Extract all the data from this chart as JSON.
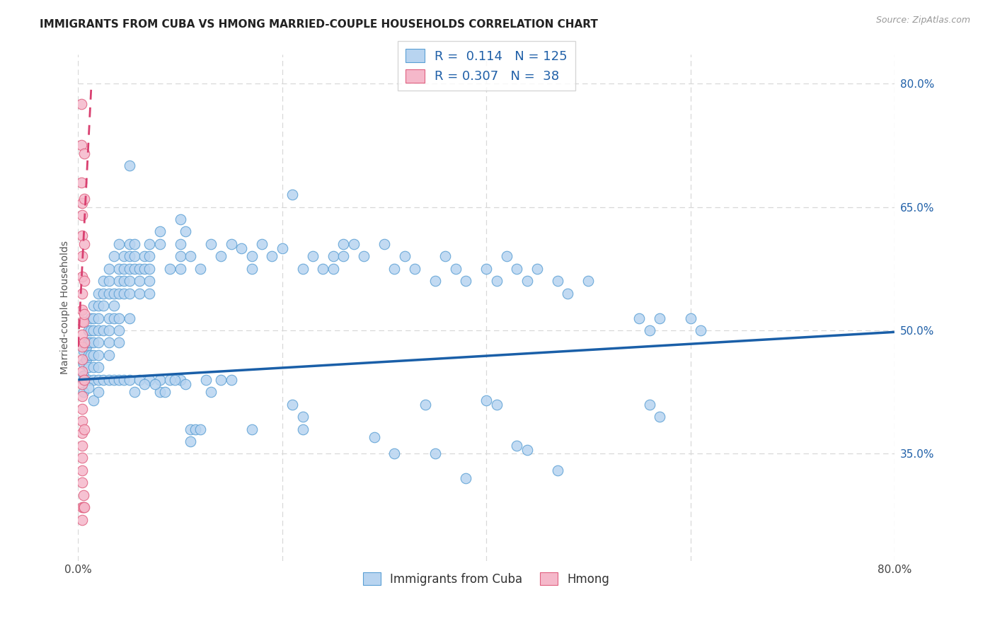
{
  "title": "IMMIGRANTS FROM CUBA VS HMONG MARRIED-COUPLE HOUSEHOLDS CORRELATION CHART",
  "source": "Source: ZipAtlas.com",
  "ylabel": "Married-couple Households",
  "xlim": [
    0.0,
    0.8
  ],
  "ylim": [
    0.22,
    0.835
  ],
  "xticks": [
    0.0,
    0.8
  ],
  "xtick_labels": [
    "0.0%",
    "80.0%"
  ],
  "ytick_labels_right": [
    "80.0%",
    "65.0%",
    "50.0%",
    "35.0%"
  ],
  "yticks_right": [
    0.8,
    0.65,
    0.5,
    0.35
  ],
  "legend_blue_r": "0.114",
  "legend_blue_n": "125",
  "legend_pink_r": "0.307",
  "legend_pink_n": "38",
  "blue_color": "#b8d4f0",
  "pink_color": "#f5b8ca",
  "blue_edge_color": "#5a9fd4",
  "pink_edge_color": "#e06080",
  "blue_line_color": "#1a5fa8",
  "pink_line_color": "#d94070",
  "blue_scatter": [
    [
      0.005,
      0.475
    ],
    [
      0.005,
      0.46
    ],
    [
      0.005,
      0.445
    ],
    [
      0.008,
      0.48
    ],
    [
      0.008,
      0.465
    ],
    [
      0.01,
      0.5
    ],
    [
      0.01,
      0.485
    ],
    [
      0.01,
      0.47
    ],
    [
      0.01,
      0.455
    ],
    [
      0.01,
      0.44
    ],
    [
      0.012,
      0.515
    ],
    [
      0.012,
      0.5
    ],
    [
      0.012,
      0.485
    ],
    [
      0.012,
      0.47
    ],
    [
      0.015,
      0.53
    ],
    [
      0.015,
      0.515
    ],
    [
      0.015,
      0.5
    ],
    [
      0.015,
      0.485
    ],
    [
      0.015,
      0.47
    ],
    [
      0.015,
      0.455
    ],
    [
      0.015,
      0.44
    ],
    [
      0.02,
      0.545
    ],
    [
      0.02,
      0.53
    ],
    [
      0.02,
      0.515
    ],
    [
      0.02,
      0.5
    ],
    [
      0.02,
      0.485
    ],
    [
      0.02,
      0.47
    ],
    [
      0.02,
      0.455
    ],
    [
      0.02,
      0.44
    ],
    [
      0.025,
      0.56
    ],
    [
      0.025,
      0.545
    ],
    [
      0.025,
      0.53
    ],
    [
      0.025,
      0.5
    ],
    [
      0.03,
      0.575
    ],
    [
      0.03,
      0.56
    ],
    [
      0.03,
      0.545
    ],
    [
      0.03,
      0.515
    ],
    [
      0.03,
      0.5
    ],
    [
      0.03,
      0.485
    ],
    [
      0.03,
      0.47
    ],
    [
      0.035,
      0.59
    ],
    [
      0.035,
      0.545
    ],
    [
      0.035,
      0.53
    ],
    [
      0.035,
      0.515
    ],
    [
      0.04,
      0.605
    ],
    [
      0.04,
      0.575
    ],
    [
      0.04,
      0.56
    ],
    [
      0.04,
      0.545
    ],
    [
      0.04,
      0.515
    ],
    [
      0.04,
      0.5
    ],
    [
      0.04,
      0.485
    ],
    [
      0.045,
      0.59
    ],
    [
      0.045,
      0.575
    ],
    [
      0.045,
      0.56
    ],
    [
      0.045,
      0.545
    ],
    [
      0.05,
      0.7
    ],
    [
      0.05,
      0.605
    ],
    [
      0.05,
      0.59
    ],
    [
      0.05,
      0.575
    ],
    [
      0.05,
      0.56
    ],
    [
      0.05,
      0.545
    ],
    [
      0.05,
      0.515
    ],
    [
      0.055,
      0.605
    ],
    [
      0.055,
      0.59
    ],
    [
      0.055,
      0.575
    ],
    [
      0.06,
      0.575
    ],
    [
      0.06,
      0.56
    ],
    [
      0.06,
      0.545
    ],
    [
      0.065,
      0.59
    ],
    [
      0.065,
      0.575
    ],
    [
      0.07,
      0.605
    ],
    [
      0.07,
      0.59
    ],
    [
      0.07,
      0.575
    ],
    [
      0.07,
      0.56
    ],
    [
      0.07,
      0.545
    ],
    [
      0.08,
      0.62
    ],
    [
      0.08,
      0.605
    ],
    [
      0.09,
      0.575
    ],
    [
      0.1,
      0.635
    ],
    [
      0.1,
      0.605
    ],
    [
      0.1,
      0.59
    ],
    [
      0.1,
      0.575
    ],
    [
      0.105,
      0.62
    ],
    [
      0.11,
      0.59
    ],
    [
      0.12,
      0.575
    ],
    [
      0.13,
      0.605
    ],
    [
      0.14,
      0.59
    ],
    [
      0.15,
      0.605
    ],
    [
      0.16,
      0.6
    ],
    [
      0.17,
      0.59
    ],
    [
      0.17,
      0.575
    ],
    [
      0.18,
      0.605
    ],
    [
      0.19,
      0.59
    ],
    [
      0.2,
      0.6
    ],
    [
      0.21,
      0.665
    ],
    [
      0.22,
      0.575
    ],
    [
      0.23,
      0.59
    ],
    [
      0.24,
      0.575
    ],
    [
      0.25,
      0.59
    ],
    [
      0.25,
      0.575
    ],
    [
      0.26,
      0.605
    ],
    [
      0.26,
      0.59
    ],
    [
      0.27,
      0.605
    ],
    [
      0.28,
      0.59
    ],
    [
      0.3,
      0.605
    ],
    [
      0.31,
      0.575
    ],
    [
      0.32,
      0.59
    ],
    [
      0.33,
      0.575
    ],
    [
      0.35,
      0.56
    ],
    [
      0.36,
      0.59
    ],
    [
      0.37,
      0.575
    ],
    [
      0.38,
      0.56
    ],
    [
      0.4,
      0.575
    ],
    [
      0.41,
      0.56
    ],
    [
      0.42,
      0.59
    ],
    [
      0.43,
      0.575
    ],
    [
      0.44,
      0.56
    ],
    [
      0.45,
      0.575
    ],
    [
      0.47,
      0.56
    ],
    [
      0.48,
      0.545
    ],
    [
      0.5,
      0.56
    ],
    [
      0.55,
      0.515
    ],
    [
      0.56,
      0.5
    ],
    [
      0.57,
      0.515
    ],
    [
      0.6,
      0.515
    ],
    [
      0.61,
      0.5
    ],
    [
      0.005,
      0.44
    ],
    [
      0.005,
      0.425
    ],
    [
      0.01,
      0.43
    ],
    [
      0.015,
      0.415
    ],
    [
      0.02,
      0.425
    ],
    [
      0.025,
      0.44
    ],
    [
      0.03,
      0.44
    ],
    [
      0.035,
      0.44
    ],
    [
      0.04,
      0.44
    ],
    [
      0.045,
      0.44
    ],
    [
      0.05,
      0.44
    ],
    [
      0.06,
      0.44
    ],
    [
      0.07,
      0.44
    ],
    [
      0.08,
      0.44
    ],
    [
      0.08,
      0.425
    ],
    [
      0.09,
      0.44
    ],
    [
      0.1,
      0.44
    ],
    [
      0.11,
      0.38
    ],
    [
      0.11,
      0.365
    ],
    [
      0.115,
      0.38
    ],
    [
      0.12,
      0.38
    ],
    [
      0.125,
      0.44
    ],
    [
      0.13,
      0.425
    ],
    [
      0.14,
      0.44
    ],
    [
      0.15,
      0.44
    ],
    [
      0.17,
      0.38
    ],
    [
      0.22,
      0.395
    ],
    [
      0.22,
      0.38
    ],
    [
      0.34,
      0.41
    ],
    [
      0.35,
      0.35
    ],
    [
      0.38,
      0.32
    ],
    [
      0.4,
      0.415
    ],
    [
      0.41,
      0.41
    ],
    [
      0.56,
      0.41
    ],
    [
      0.57,
      0.395
    ],
    [
      0.055,
      0.425
    ],
    [
      0.065,
      0.435
    ],
    [
      0.075,
      0.435
    ],
    [
      0.085,
      0.425
    ],
    [
      0.095,
      0.44
    ],
    [
      0.105,
      0.435
    ],
    [
      0.21,
      0.41
    ],
    [
      0.29,
      0.37
    ],
    [
      0.31,
      0.35
    ],
    [
      0.43,
      0.36
    ],
    [
      0.44,
      0.355
    ],
    [
      0.47,
      0.33
    ]
  ],
  "pink_scatter": [
    [
      0.003,
      0.775
    ],
    [
      0.003,
      0.725
    ],
    [
      0.003,
      0.68
    ],
    [
      0.004,
      0.655
    ],
    [
      0.004,
      0.64
    ],
    [
      0.004,
      0.615
    ],
    [
      0.004,
      0.59
    ],
    [
      0.004,
      0.565
    ],
    [
      0.004,
      0.545
    ],
    [
      0.004,
      0.525
    ],
    [
      0.004,
      0.51
    ],
    [
      0.004,
      0.495
    ],
    [
      0.004,
      0.48
    ],
    [
      0.004,
      0.465
    ],
    [
      0.004,
      0.45
    ],
    [
      0.004,
      0.435
    ],
    [
      0.004,
      0.42
    ],
    [
      0.004,
      0.405
    ],
    [
      0.004,
      0.39
    ],
    [
      0.004,
      0.375
    ],
    [
      0.004,
      0.36
    ],
    [
      0.004,
      0.345
    ],
    [
      0.004,
      0.33
    ],
    [
      0.004,
      0.315
    ],
    [
      0.004,
      0.285
    ],
    [
      0.004,
      0.27
    ],
    [
      0.005,
      0.3
    ],
    [
      0.005,
      0.285
    ],
    [
      0.005,
      0.51
    ],
    [
      0.006,
      0.715
    ],
    [
      0.006,
      0.66
    ],
    [
      0.006,
      0.605
    ],
    [
      0.006,
      0.56
    ],
    [
      0.006,
      0.52
    ],
    [
      0.006,
      0.485
    ],
    [
      0.006,
      0.44
    ],
    [
      0.006,
      0.38
    ],
    [
      0.006,
      0.285
    ]
  ],
  "blue_trend_x": [
    0.0,
    0.8
  ],
  "blue_trend_y": [
    0.44,
    0.498
  ],
  "pink_trend_x": [
    0.0,
    0.013
  ],
  "pink_trend_y": [
    0.48,
    0.8
  ],
  "legend_label_blue": "Immigrants from Cuba",
  "legend_label_pink": "Hmong",
  "background_color": "#ffffff",
  "grid_color": "#d8d8d8",
  "title_fontsize": 11,
  "axis_fontsize": 10,
  "scatter_size": 110
}
